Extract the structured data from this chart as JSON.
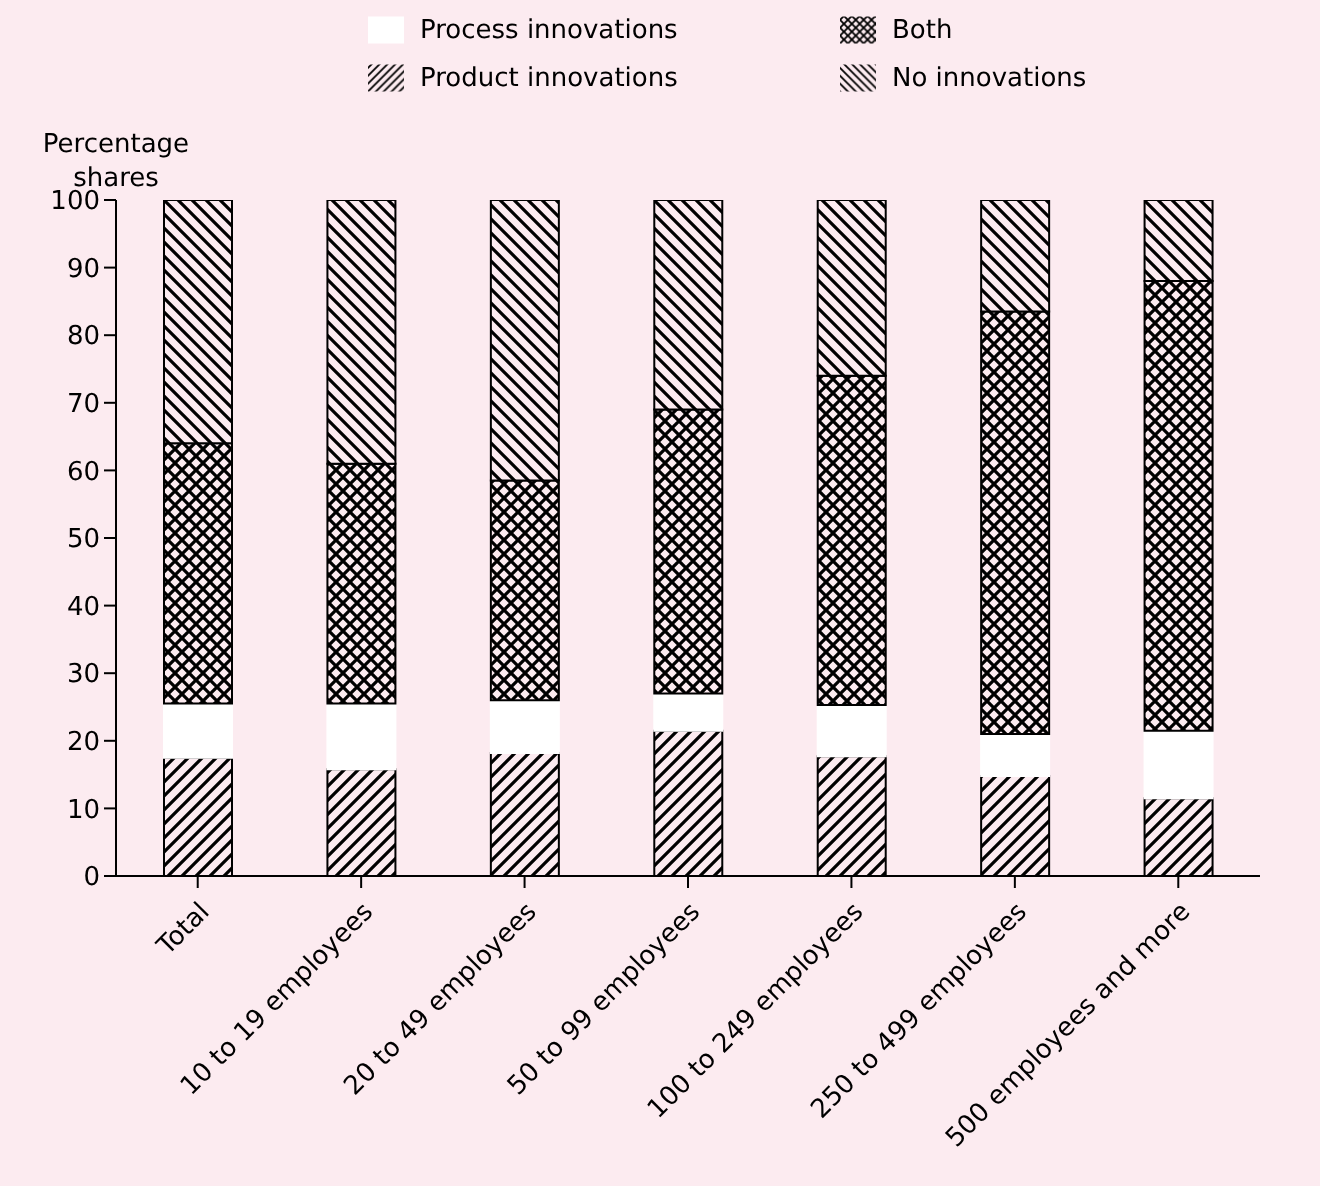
{
  "chart_data": {
    "type": "bar",
    "stacked": true,
    "ylabel": "Percentage shares",
    "categories": [
      "Total",
      "10 to 19 employees",
      "20 to 49 employees",
      "50 to 99 employees",
      "100 to 249 employees",
      "250 to 499 employees",
      "500 employees and more"
    ],
    "series": [
      {
        "name": "Product innovations",
        "color": "#000000",
        "values": [
          17.5,
          15.8,
          18.2,
          21.5,
          17.7,
          14.8,
          11.5
        ]
      },
      {
        "name": "Process innovations",
        "color": "#ffffff",
        "values": [
          8,
          9.7,
          7.8,
          5.5,
          7.6,
          6.2,
          10
        ]
      },
      {
        "name": "Both",
        "color": "#000000",
        "values": [
          38.5,
          35.5,
          32.5,
          42,
          48.7,
          62.5,
          66.5
        ]
      },
      {
        "name": "No innovations",
        "color": "#000000",
        "values": [
          36,
          39,
          41.5,
          31,
          26,
          16.5,
          12
        ]
      }
    ],
    "ylim": [
      0,
      100
    ],
    "yticks": [
      0,
      10,
      20,
      30,
      40,
      50,
      60,
      70,
      80,
      90,
      100
    ],
    "grid": false,
    "legend": "top"
  }
}
